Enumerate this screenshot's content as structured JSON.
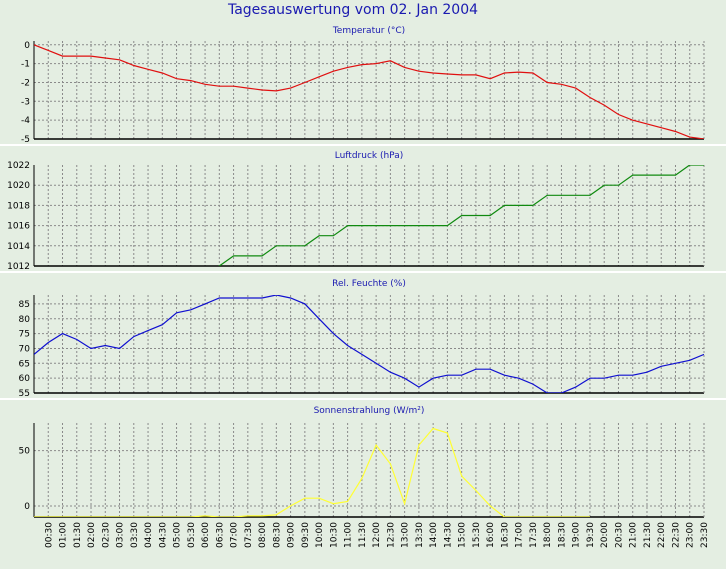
{
  "title": "Tagesauswertung vom 02. Jan 2004",
  "colors": {
    "background": "#e4eee2",
    "plot_background": "#e4eee2",
    "grid": "#8a8a8a",
    "title": "#1a1ab0",
    "axis": "#000000",
    "separator": "#ffffff"
  },
  "chart_data": [
    {
      "type": "line",
      "title": "Temperatur (°C)",
      "color": "#e01010",
      "ylim": [
        -5,
        0.2
      ],
      "yticks": [
        0,
        -1,
        -2,
        -3,
        -4,
        -5
      ],
      "xlim": [
        0,
        47
      ],
      "grid": true,
      "x": [
        0,
        1,
        2,
        3,
        4,
        5,
        6,
        7,
        8,
        9,
        10,
        11,
        12,
        13,
        14,
        15,
        16,
        17,
        18,
        19,
        20,
        21,
        22,
        23,
        24,
        25,
        26,
        27,
        28,
        29,
        30,
        31,
        32,
        33,
        34,
        35,
        36,
        37,
        38,
        39,
        40,
        41,
        42,
        43,
        44,
        45,
        46,
        47
      ],
      "series": [
        {
          "values": [
            0,
            -0.3,
            -0.6,
            -0.6,
            -0.6,
            -0.7,
            -0.8,
            -1.1,
            -1.3,
            -1.5,
            -1.8,
            -1.9,
            -2.1,
            -2.2,
            -2.2,
            -2.3,
            -2.4,
            -2.45,
            -2.3,
            -2.0,
            -1.7,
            -1.4,
            -1.2,
            -1.05,
            -1.0,
            -0.85,
            -1.2,
            -1.4,
            -1.5,
            -1.55,
            -1.6,
            -1.6,
            -1.8,
            -1.5,
            -1.45,
            -1.5,
            -2.0,
            -2.1,
            -2.3,
            -2.8,
            -3.2,
            -3.7,
            -4.0,
            -4.2,
            -4.4,
            -4.6,
            -4.9,
            -5.0
          ]
        }
      ]
    },
    {
      "type": "line",
      "title": "Luftdruck (hPa)",
      "color": "#108a10",
      "ylim": [
        1012,
        1022
      ],
      "yticks": [
        1022,
        1020,
        1018,
        1016,
        1014,
        1012
      ],
      "xlim": [
        0,
        47
      ],
      "grid": true,
      "x": [
        0,
        1,
        2,
        3,
        4,
        5,
        6,
        7,
        8,
        9,
        10,
        11,
        12,
        13,
        14,
        15,
        16,
        17,
        18,
        19,
        20,
        21,
        22,
        23,
        24,
        25,
        26,
        27,
        28,
        29,
        30,
        31,
        32,
        33,
        34,
        35,
        36,
        37,
        38,
        39,
        40,
        41,
        42,
        43,
        44,
        45,
        46,
        47
      ],
      "series": [
        {
          "values": [
            1011,
            1011,
            1011,
            1011,
            1011,
            1011,
            1011,
            1011,
            1011,
            1011,
            1011,
            1011,
            1011,
            1012,
            1013,
            1013,
            1013,
            1014,
            1014,
            1014,
            1015,
            1015,
            1016,
            1016,
            1016,
            1016,
            1016,
            1016,
            1016,
            1016,
            1017,
            1017,
            1017,
            1018,
            1018,
            1018,
            1019,
            1019,
            1019,
            1019,
            1020,
            1020,
            1021,
            1021,
            1021,
            1021,
            1022,
            1022
          ]
        }
      ]
    },
    {
      "type": "line",
      "title": "Rel. Feuchte (%)",
      "color": "#1010d0",
      "ylim": [
        55,
        88
      ],
      "yticks": [
        85,
        80,
        75,
        70,
        65,
        60,
        55
      ],
      "xlim": [
        0,
        47
      ],
      "grid": true,
      "x": [
        0,
        1,
        2,
        3,
        4,
        5,
        6,
        7,
        8,
        9,
        10,
        11,
        12,
        13,
        14,
        15,
        16,
        17,
        18,
        19,
        20,
        21,
        22,
        23,
        24,
        25,
        26,
        27,
        28,
        29,
        30,
        31,
        32,
        33,
        34,
        35,
        36,
        37,
        38,
        39,
        40,
        41,
        42,
        43,
        44,
        45,
        46,
        47
      ],
      "series": [
        {
          "values": [
            68,
            72,
            75,
            73,
            70,
            71,
            70,
            74,
            76,
            78,
            82,
            83,
            85,
            87,
            87,
            87,
            87,
            88,
            87,
            85,
            80,
            75,
            71,
            68,
            65,
            62,
            60,
            57,
            60,
            61,
            61,
            63,
            63,
            61,
            60,
            58,
            55,
            55,
            57,
            60,
            60,
            61,
            61,
            62,
            64,
            65,
            66,
            68
          ]
        }
      ]
    },
    {
      "type": "line",
      "title": "Sonnenstrahlung (W/m²)",
      "color": "#ffff33",
      "ylim": [
        -10,
        75
      ],
      "yticks": [
        50,
        0
      ],
      "xlim": [
        0,
        47
      ],
      "grid": true,
      "x": [
        0,
        1,
        2,
        3,
        4,
        5,
        6,
        7,
        8,
        9,
        10,
        11,
        12,
        13,
        14,
        15,
        16,
        17,
        18,
        19,
        20,
        21,
        22,
        23,
        24,
        25,
        26,
        27,
        28,
        29,
        30,
        31,
        32,
        33,
        34,
        35,
        36,
        37,
        38,
        39,
        40,
        41,
        42,
        43,
        44,
        45,
        46,
        47
      ],
      "x_tick_labels": [
        "00:30",
        "01:00",
        "01:30",
        "02:00",
        "02:30",
        "03:00",
        "03:30",
        "04:00",
        "04:30",
        "05:00",
        "05:30",
        "06:00",
        "06:30",
        "07:00",
        "07:30",
        "08:00",
        "08:30",
        "09:00",
        "09:30",
        "10:00",
        "10:30",
        "11:00",
        "11:30",
        "12:00",
        "12:30",
        "13:00",
        "13:30",
        "14:00",
        "14:30",
        "15:00",
        "15:30",
        "16:00",
        "16:30",
        "17:00",
        "17:30",
        "18:00",
        "18:30",
        "19:00",
        "19:30",
        "20:00",
        "20:30",
        "21:00",
        "21:30",
        "22:00",
        "22:30",
        "23:00",
        "23:30"
      ],
      "series": [
        {
          "values": [
            -10,
            -10,
            -10,
            -10,
            -10,
            -10,
            -10,
            -10,
            -10,
            -10,
            -10,
            -10,
            -9,
            -10,
            -10,
            -9,
            -9,
            -8,
            0,
            7,
            7,
            2,
            4,
            25,
            55,
            38,
            2,
            55,
            70,
            66,
            27,
            14,
            0,
            -10,
            -10,
            -10,
            -10,
            -10,
            -10,
            -10,
            null,
            null,
            null,
            null,
            null,
            null,
            null,
            null
          ]
        }
      ]
    }
  ]
}
